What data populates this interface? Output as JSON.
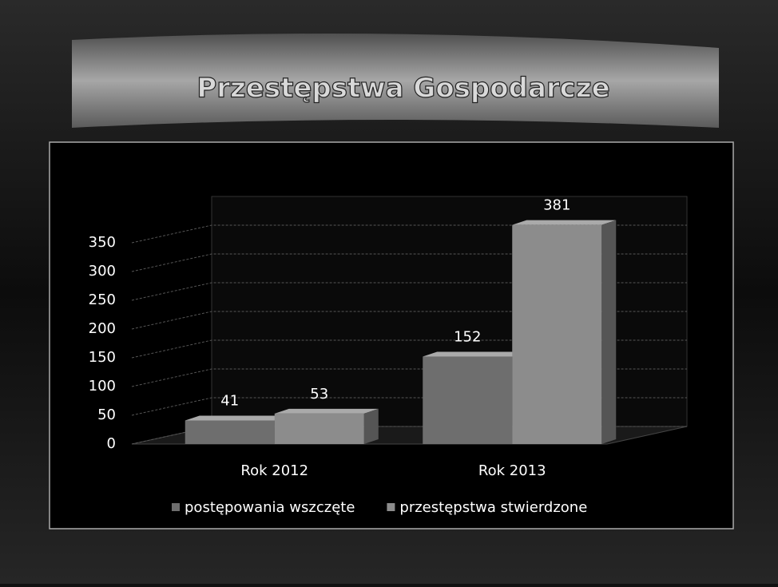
{
  "chart_data": {
    "type": "bar3d",
    "title": "Przestępstwa Gospodarcze",
    "categories": [
      "Rok 2012",
      "Rok 2013"
    ],
    "series": [
      {
        "name": "postępowania wszczęte",
        "color": "#6e6e6e",
        "values": [
          41,
          152
        ]
      },
      {
        "name": "przestępstwa stwierdzone",
        "color": "#8c8c8c",
        "values": [
          53,
          381
        ]
      }
    ],
    "ylim": [
      0,
      400
    ],
    "yticks": [
      0,
      50,
      100,
      150,
      200,
      250,
      300,
      350
    ],
    "grid": true,
    "legend": "bottom"
  }
}
